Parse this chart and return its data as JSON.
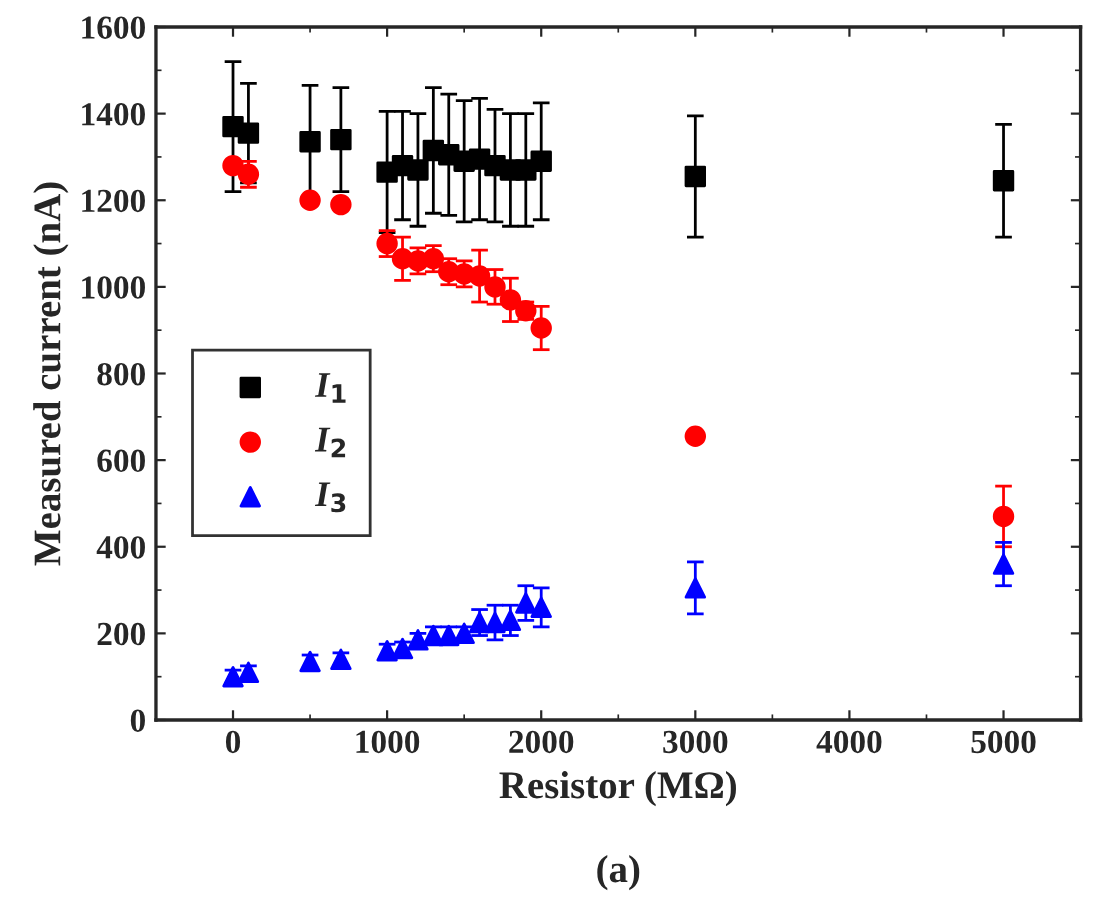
{
  "chart_data": {
    "type": "scatter",
    "xlabel": "Resistor (MΩ)",
    "ylabel": "Measured current (nA)",
    "annotations": [
      "(a)"
    ],
    "x": [
      0,
      100,
      500,
      700,
      1000,
      1100,
      1200,
      1300,
      1400,
      1500,
      1600,
      1700,
      1800,
      1900,
      2000,
      3000,
      5000
    ],
    "series": [
      {
        "name": "I$_{1}$",
        "color": "#000000",
        "marker": "square",
        "values": [
          1370,
          1355,
          1335,
          1340,
          1265,
          1280,
          1270,
          1315,
          1305,
          1290,
          1295,
          1280,
          1270,
          1270,
          1290,
          1255,
          1245
        ],
        "errors": [
          150,
          115,
          130,
          120,
          140,
          125,
          130,
          145,
          140,
          140,
          140,
          130,
          130,
          130,
          135,
          140,
          130
        ]
      },
      {
        "name": "I$_{2}$",
        "color": "#ff0000",
        "marker": "circle",
        "values": [
          1280,
          1260,
          1200,
          1190,
          1100,
          1065,
          1060,
          1065,
          1035,
          1030,
          1025,
          1000,
          970,
          945,
          905,
          655,
          470
        ],
        "errors": [
          null,
          30,
          null,
          null,
          30,
          50,
          30,
          30,
          30,
          30,
          60,
          40,
          50,
          20,
          50,
          null,
          70
        ]
      },
      {
        "name": "I$_{3}$",
        "color": "#0000ff",
        "marker": "triangle",
        "values": [
          100,
          110,
          135,
          140,
          160,
          165,
          185,
          195,
          195,
          200,
          225,
          225,
          230,
          270,
          260,
          305,
          360
        ],
        "errors": [
          15,
          15,
          15,
          15,
          15,
          15,
          15,
          20,
          20,
          15,
          30,
          40,
          35,
          40,
          45,
          60,
          50
        ]
      }
    ],
    "xlim": [
      -500,
      5500
    ],
    "xticks": [
      0,
      1000,
      2000,
      3000,
      4000,
      5000
    ],
    "ylim": [
      0,
      1600
    ],
    "yticks": [
      0,
      200,
      400,
      600,
      800,
      1000,
      1200,
      1400,
      1600
    ],
    "legend": "center left",
    "grid": false
  }
}
